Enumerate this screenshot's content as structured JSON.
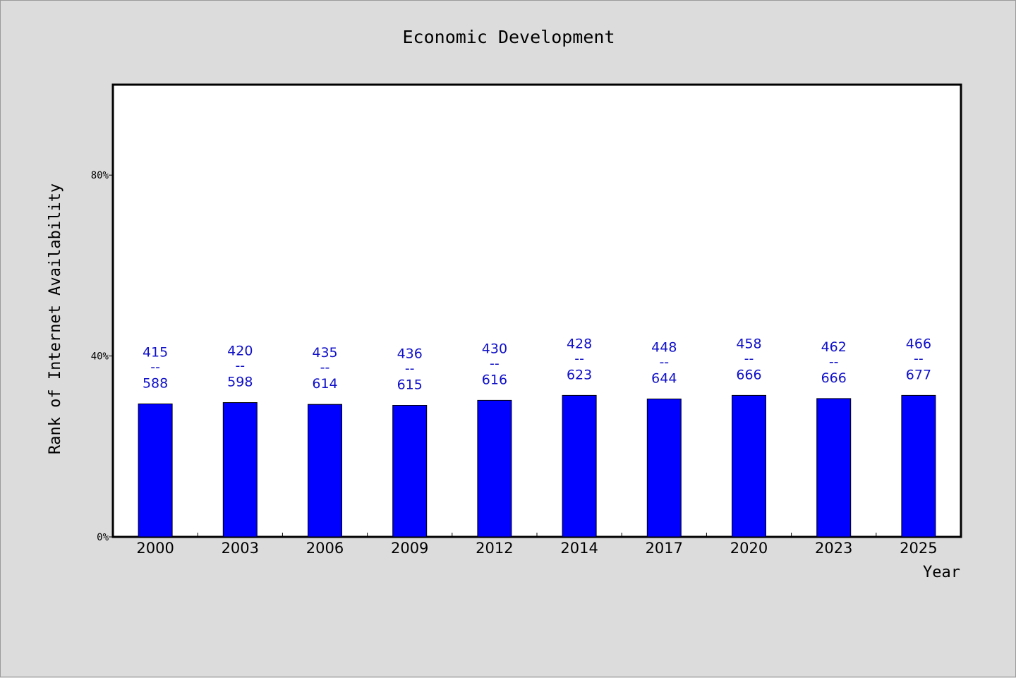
{
  "chart_data": {
    "type": "bar",
    "title": "Economic Development",
    "xlabel": "Year",
    "ylabel": "Rank of Internet Availability",
    "categories": [
      "2000",
      "2003",
      "2006",
      "2009",
      "2012",
      "2014",
      "2017",
      "2020",
      "2023",
      "2025"
    ],
    "values": [
      29.4,
      29.7,
      29.3,
      29.1,
      30.2,
      31.3,
      30.5,
      31.3,
      30.6,
      31.3
    ],
    "label_top": [
      "415",
      "420",
      "435",
      "436",
      "430",
      "428",
      "448",
      "458",
      "462",
      "466"
    ],
    "label_sep": "--",
    "label_bottom": [
      "588",
      "598",
      "614",
      "615",
      "616",
      "623",
      "644",
      "666",
      "666",
      "677"
    ],
    "ylim": [
      0,
      100
    ],
    "yticks": [
      0,
      40,
      80
    ],
    "ytick_labels": [
      "0%",
      "40%",
      "80%"
    ],
    "grid": false,
    "legend": "none",
    "colors": {
      "bar": "#0000ff",
      "bar_edge": "#000000",
      "label": "#1010c8",
      "background": "#dcdcdc",
      "plot_background": "#ffffff"
    }
  }
}
